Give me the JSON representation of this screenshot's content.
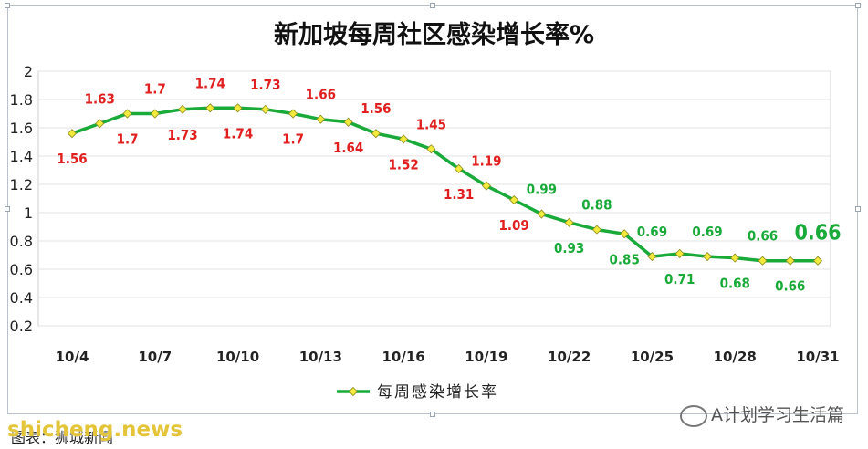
{
  "chart_data": {
    "type": "line",
    "title": "新加坡每周社区感染增长率%",
    "x": [
      "10/4",
      "10/5",
      "10/6",
      "10/7",
      "10/8",
      "10/9",
      "10/10",
      "10/11",
      "10/12",
      "10/13",
      "10/14",
      "10/15",
      "10/16",
      "10/17",
      "10/18",
      "10/19",
      "10/20",
      "10/21",
      "10/22",
      "10/23",
      "10/24",
      "10/25",
      "10/26",
      "10/27",
      "10/28",
      "10/29",
      "10/30",
      "10/31"
    ],
    "x_tick_labels": [
      "10/4",
      "10/7",
      "10/10",
      "10/13",
      "10/16",
      "10/19",
      "10/22",
      "10/25",
      "10/28",
      "10/31"
    ],
    "series": [
      {
        "name": "每周感染增长率",
        "values": [
          1.56,
          1.63,
          1.7,
          1.7,
          1.73,
          1.74,
          1.74,
          1.73,
          1.7,
          1.66,
          1.64,
          1.56,
          1.52,
          1.45,
          1.31,
          1.19,
          1.09,
          0.99,
          0.93,
          0.88,
          0.85,
          0.69,
          0.71,
          0.69,
          0.68,
          0.66,
          0.66,
          0.66
        ],
        "color": "#1aaa3a",
        "marker_color": "#f2ea3c"
      }
    ],
    "data_labels": [
      "1.56",
      "1.63",
      "1.7",
      "1.7",
      "1.73",
      "1.74",
      "1.74",
      "1.73",
      "1.7",
      "1.66",
      "1.64",
      "1.56",
      "1.52",
      "1.45",
      "1.31",
      "1.19",
      "1.09",
      "0.99",
      "0.93",
      "0.88",
      "0.85",
      "0.69",
      "0.71",
      "0.69",
      "0.68",
      "0.66",
      "0.66",
      "0.66"
    ],
    "y_ticks": [
      "2",
      "1.8",
      "1.6",
      "1.4",
      "1.2",
      "1",
      "0.8",
      "0.6",
      "0.4",
      "0.2"
    ],
    "ylim": [
      0.2,
      2
    ],
    "grid": true,
    "legend": "bottom",
    "label_colors": {
      "high": "#e02020",
      "low": "#1aaa3a"
    }
  },
  "watermarks": {
    "wechat": "A计划学习生活篇",
    "site": "shicheng.news",
    "source": "图表：狮城新闻"
  }
}
